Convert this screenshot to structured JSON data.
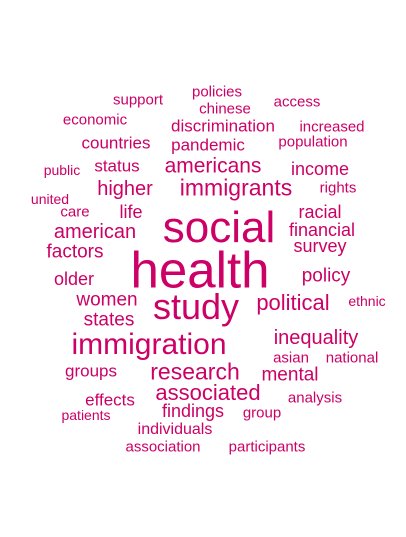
{
  "style": {
    "text_color": "#cc0066",
    "background": "#ffffff"
  },
  "words": {
    "policies": "policies",
    "support": "support",
    "access": "access",
    "chinese": "chinese",
    "economic": "economic",
    "discrimination": "discrimination",
    "increased": "increased",
    "countries": "countries",
    "pandemic": "pandemic",
    "population": "population",
    "public": "public",
    "status": "status",
    "americans": "americans",
    "income": "income",
    "united": "united",
    "higher": "higher",
    "immigrants": "immigrants",
    "rights": "rights",
    "care": "care",
    "life": "life",
    "racial": "racial",
    "social": "social",
    "american": "american",
    "financial": "financial",
    "factors": "factors",
    "survey": "survey",
    "health": "health",
    "older": "older",
    "policy": "policy",
    "study": "study",
    "women": "women",
    "political": "political",
    "ethnic": "ethnic",
    "states": "states",
    "inequality": "inequality",
    "immigration": "immigration",
    "asian": "asian",
    "national": "national",
    "groups": "groups",
    "research": "research",
    "mental": "mental",
    "associated": "associated",
    "effects": "effects",
    "analysis": "analysis",
    "findings": "findings",
    "group": "group",
    "patients": "patients",
    "individuals": "individuals",
    "association": "association",
    "participants": "participants"
  }
}
